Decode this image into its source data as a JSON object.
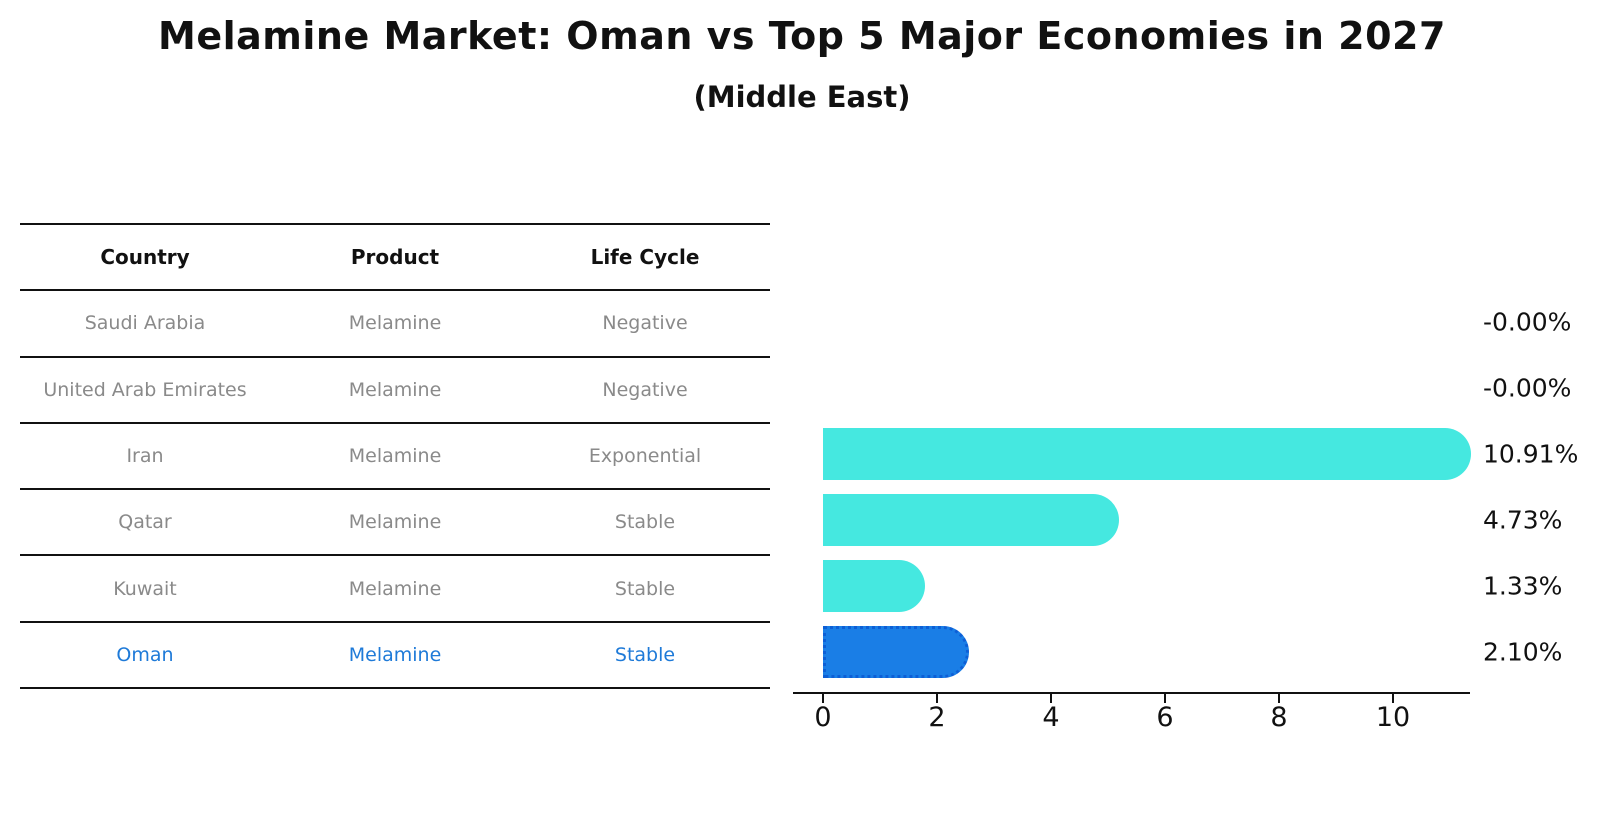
{
  "title": "Melamine Market: Oman vs Top 5 Major Economies in 2027",
  "subtitle": "(Middle East)",
  "table": {
    "headers": [
      "Country",
      "Product",
      "Life Cycle"
    ],
    "rows": [
      {
        "country": "Saudi Arabia",
        "product": "Melamine",
        "life_cycle": "Negative",
        "highlighted": false
      },
      {
        "country": "United Arab Emirates",
        "product": "Melamine",
        "life_cycle": "Negative",
        "highlighted": false
      },
      {
        "country": "Iran",
        "product": "Melamine",
        "life_cycle": "Exponential",
        "highlighted": false
      },
      {
        "country": "Qatar",
        "product": "Melamine",
        "life_cycle": "Stable",
        "highlighted": false
      },
      {
        "country": "Kuwait",
        "product": "Melamine",
        "life_cycle": "Stable",
        "highlighted": false
      },
      {
        "country": "Oman",
        "product": "Melamine",
        "life_cycle": "Stable",
        "highlighted": true
      }
    ]
  },
  "chart_data": {
    "type": "bar",
    "orientation": "horizontal",
    "title": "Melamine Market: Oman vs Top 5 Major Economies in 2027",
    "subtitle": "(Middle East)",
    "categories": [
      "Saudi Arabia",
      "United Arab Emirates",
      "Iran",
      "Qatar",
      "Kuwait",
      "Oman"
    ],
    "values": [
      -0.0,
      -0.0,
      10.91,
      4.73,
      1.33,
      2.1
    ],
    "value_labels": [
      "-0.00%",
      "-0.00%",
      "10.91%",
      "4.73%",
      "1.33%",
      "2.10%"
    ],
    "x_ticks": [
      0,
      2,
      4,
      6,
      8,
      10
    ],
    "xlim": [
      0,
      11.4
    ],
    "grid": false,
    "legend": false,
    "bar_color": "#45e8e0",
    "highlight_bar_color": "#1a7ee6",
    "highlight_border_color": "#0d5fd6",
    "highlight_index": 5,
    "highlight_text_color": "#1e7ad8"
  },
  "colors": {
    "background": "#ffffff",
    "row_text": "#8a8a8a",
    "header_text": "#111111",
    "line": "#111111"
  }
}
